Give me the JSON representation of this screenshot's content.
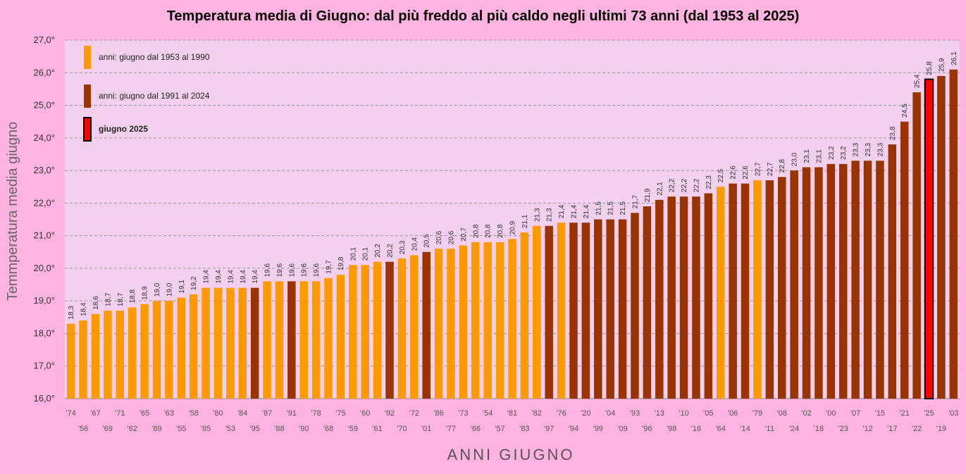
{
  "chart_data": {
    "type": "bar",
    "title": "Temperatura media di Giugno: dal più freddo al più caldo negli ultimi 73 anni   (dal 1953 al 2025)",
    "xlabel": "ANNI   GIUGNO",
    "ylabel": "Temmperatura media giugno",
    "ylim": [
      16,
      27
    ],
    "yticks": [
      "16,0°",
      "17,0°",
      "18,0°",
      "19,0°",
      "20,0°",
      "21,0°",
      "22,0°",
      "23,0°",
      "24,0°",
      "25,0°",
      "26,0°",
      "27,0°"
    ],
    "grid": true,
    "legend_position": "top-left",
    "legend": [
      {
        "label": "anni:  giugno  dal 1953 al 1990",
        "group": "old"
      },
      {
        "label": "anni:  giugno  dal 1991 al 2024",
        "group": "new"
      },
      {
        "label": "giugno 2025",
        "group": "current"
      }
    ],
    "colors": {
      "old": "#FF9900",
      "new": "#993300",
      "current": "#FF0000",
      "current_border": "#000000"
    },
    "categories": [
      "'74",
      "'56",
      "'67",
      "'69",
      "'71",
      "'62",
      "'65",
      "'89",
      "'63",
      "'55",
      "'58",
      "'85",
      "'80",
      "'53",
      "'84",
      "'95",
      "'87",
      "'88",
      "'91",
      "'90",
      "'78",
      "'68",
      "'75",
      "'59",
      "'60",
      "'61",
      "'92",
      "'70",
      "'72",
      "'01",
      "'86",
      "'77",
      "'73",
      "'66",
      "'54",
      "'57",
      "'81",
      "'83",
      "'82",
      "'97",
      "'76",
      "'94",
      "'20",
      "'99",
      "'04",
      "'09",
      "'93",
      "'96",
      "'13",
      "'98",
      "'10",
      "'16",
      "'05",
      "'64",
      "'06",
      "'14",
      "'79",
      "'11",
      "'08",
      "'24",
      "'02",
      "'18",
      "'00",
      "'23",
      "'07",
      "'12",
      "'15",
      "'17",
      "'21",
      "'22",
      "'25",
      "'19",
      "'03"
    ],
    "values": [
      18.3,
      18.4,
      18.6,
      18.7,
      18.7,
      18.8,
      18.9,
      19.0,
      19.0,
      19.1,
      19.2,
      19.4,
      19.4,
      19.4,
      19.4,
      19.4,
      19.6,
      19.6,
      19.6,
      19.6,
      19.6,
      19.7,
      19.8,
      20.1,
      20.1,
      20.2,
      20.2,
      20.3,
      20.4,
      20.5,
      20.6,
      20.6,
      20.7,
      20.8,
      20.8,
      20.8,
      20.9,
      21.1,
      21.3,
      21.3,
      21.4,
      21.4,
      21.4,
      21.5,
      21.5,
      21.5,
      21.7,
      21.9,
      22.1,
      22.2,
      22.2,
      22.2,
      22.3,
      22.5,
      22.6,
      22.6,
      22.7,
      22.7,
      22.8,
      23.0,
      23.1,
      23.1,
      23.2,
      23.2,
      23.3,
      23.3,
      23.3,
      23.8,
      24.5,
      25.4,
      25.8,
      25.9,
      26.1
    ],
    "data_labels": [
      "18,3",
      "18,4",
      "18,6",
      "18,7",
      "18,7",
      "18,8",
      "18,9",
      "19,0",
      "19,0",
      "19,1",
      "19,2",
      "19,4",
      "19,4",
      "19,4",
      "19,4",
      "19,4",
      "19,6",
      "19,6",
      "19,6",
      "19,6",
      "19,6",
      "19,7",
      "19,8",
      "20,1",
      "20,1",
      "20,2",
      "20,2",
      "20,3",
      "20,4",
      "20,5",
      "20,6",
      "20,6",
      "20,7",
      "20,8",
      "20,8",
      "20,8",
      "20,9",
      "21,1",
      "21,3",
      "21,3",
      "21,4",
      "21,4",
      "21,4",
      "21,5",
      "21,5",
      "21,5",
      "21,7",
      "21,9",
      "22,1",
      "22,2",
      "22,2",
      "22,2",
      "22,3",
      "22,5",
      "22,6",
      "22,6",
      "22,7",
      "22,7",
      "22,8",
      "23,0",
      "23,1",
      "23,1",
      "23,2",
      "23,2",
      "23,3",
      "23,3",
      "23,3",
      "23,8",
      "24,5",
      "25,4",
      "25,8",
      "25,9",
      "26,1"
    ],
    "groups": [
      "old",
      "old",
      "old",
      "old",
      "old",
      "old",
      "old",
      "old",
      "old",
      "old",
      "old",
      "old",
      "old",
      "old",
      "old",
      "new",
      "old",
      "old",
      "new",
      "old",
      "old",
      "old",
      "old",
      "old",
      "old",
      "old",
      "new",
      "old",
      "old",
      "new",
      "old",
      "old",
      "old",
      "old",
      "old",
      "old",
      "old",
      "old",
      "old",
      "new",
      "old",
      "new",
      "new",
      "new",
      "new",
      "new",
      "new",
      "new",
      "new",
      "new",
      "new",
      "new",
      "new",
      "old",
      "new",
      "new",
      "old",
      "new",
      "new",
      "new",
      "new",
      "new",
      "new",
      "new",
      "new",
      "new",
      "new",
      "new",
      "new",
      "new",
      "current",
      "new",
      "new"
    ]
  }
}
